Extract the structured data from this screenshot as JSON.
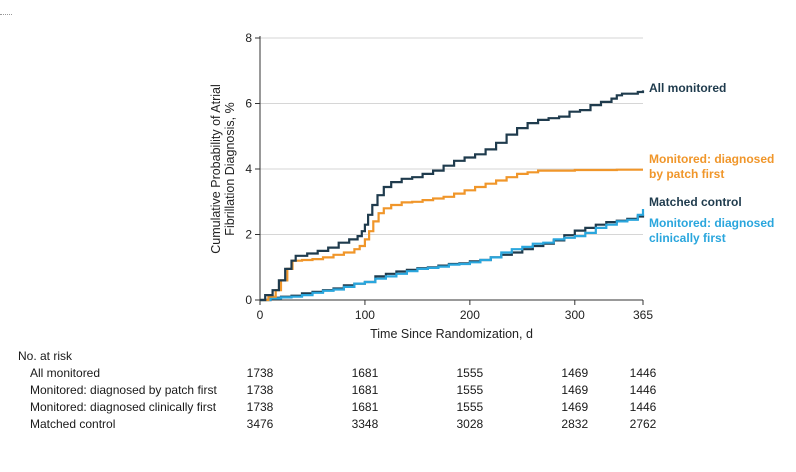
{
  "chart_data": {
    "type": "line",
    "xlabel": "Time Since Randomization, d",
    "ylabel_lines": [
      "Cumulative Probability of Atrial",
      "Fibrillation Diagnosis, %"
    ],
    "xlim": [
      0,
      365
    ],
    "ylim": [
      0,
      8
    ],
    "x_ticks": [
      0,
      100,
      200,
      300,
      365
    ],
    "y_ticks": [
      0,
      2,
      4,
      6,
      8
    ],
    "grid": "horizontal",
    "series": [
      {
        "name": "All monitored",
        "color": "#1f3b4d",
        "points": [
          [
            0,
            0
          ],
          [
            5,
            0.15
          ],
          [
            12,
            0.3
          ],
          [
            18,
            0.6
          ],
          [
            24,
            0.95
          ],
          [
            30,
            1.2
          ],
          [
            34,
            1.35
          ],
          [
            45,
            1.42
          ],
          [
            55,
            1.5
          ],
          [
            65,
            1.6
          ],
          [
            75,
            1.75
          ],
          [
            85,
            1.85
          ],
          [
            93,
            1.95
          ],
          [
            97,
            2.1
          ],
          [
            100,
            2.3
          ],
          [
            103,
            2.6
          ],
          [
            107,
            2.9
          ],
          [
            112,
            3.2
          ],
          [
            118,
            3.45
          ],
          [
            125,
            3.6
          ],
          [
            135,
            3.7
          ],
          [
            145,
            3.75
          ],
          [
            155,
            3.85
          ],
          [
            165,
            3.95
          ],
          [
            175,
            4.1
          ],
          [
            185,
            4.25
          ],
          [
            195,
            4.35
          ],
          [
            205,
            4.45
          ],
          [
            215,
            4.6
          ],
          [
            225,
            4.8
          ],
          [
            235,
            5.05
          ],
          [
            245,
            5.25
          ],
          [
            255,
            5.4
          ],
          [
            265,
            5.5
          ],
          [
            275,
            5.55
          ],
          [
            285,
            5.6
          ],
          [
            295,
            5.75
          ],
          [
            305,
            5.8
          ],
          [
            315,
            5.95
          ],
          [
            325,
            6.05
          ],
          [
            335,
            6.15
          ],
          [
            340,
            6.25
          ],
          [
            345,
            6.3
          ],
          [
            352,
            6.3
          ],
          [
            360,
            6.35
          ],
          [
            365,
            6.4
          ]
        ]
      },
      {
        "name": "Monitored: diagnosed by patch first",
        "color": "#f0962a",
        "points": [
          [
            0,
            0
          ],
          [
            8,
            0.1
          ],
          [
            15,
            0.3
          ],
          [
            20,
            0.6
          ],
          [
            26,
            0.95
          ],
          [
            31,
            1.2
          ],
          [
            40,
            1.22
          ],
          [
            50,
            1.25
          ],
          [
            60,
            1.3
          ],
          [
            70,
            1.38
          ],
          [
            80,
            1.45
          ],
          [
            90,
            1.55
          ],
          [
            95,
            1.65
          ],
          [
            100,
            1.85
          ],
          [
            104,
            2.1
          ],
          [
            108,
            2.4
          ],
          [
            113,
            2.65
          ],
          [
            118,
            2.8
          ],
          [
            125,
            2.9
          ],
          [
            135,
            2.98
          ],
          [
            145,
            3.0
          ],
          [
            155,
            3.05
          ],
          [
            165,
            3.1
          ],
          [
            175,
            3.15
          ],
          [
            185,
            3.25
          ],
          [
            195,
            3.35
          ],
          [
            205,
            3.45
          ],
          [
            215,
            3.55
          ],
          [
            225,
            3.65
          ],
          [
            235,
            3.75
          ],
          [
            245,
            3.85
          ],
          [
            255,
            3.9
          ],
          [
            265,
            3.95
          ],
          [
            280,
            3.95
          ],
          [
            300,
            3.97
          ],
          [
            320,
            3.97
          ],
          [
            340,
            3.98
          ],
          [
            365,
            3.98
          ]
        ]
      },
      {
        "name": "Matched control",
        "color": "#1f3b4d",
        "points": [
          [
            0,
            0
          ],
          [
            10,
            0.07
          ],
          [
            20,
            0.1
          ],
          [
            30,
            0.13
          ],
          [
            40,
            0.2
          ],
          [
            50,
            0.25
          ],
          [
            60,
            0.3
          ],
          [
            70,
            0.35
          ],
          [
            80,
            0.45
          ],
          [
            90,
            0.5
          ],
          [
            100,
            0.55
          ],
          [
            110,
            0.72
          ],
          [
            120,
            0.8
          ],
          [
            130,
            0.87
          ],
          [
            140,
            0.92
          ],
          [
            150,
            0.97
          ],
          [
            160,
            1.0
          ],
          [
            170,
            1.05
          ],
          [
            180,
            1.1
          ],
          [
            190,
            1.12
          ],
          [
            200,
            1.18
          ],
          [
            210,
            1.22
          ],
          [
            220,
            1.3
          ],
          [
            230,
            1.38
          ],
          [
            240,
            1.45
          ],
          [
            250,
            1.55
          ],
          [
            260,
            1.65
          ],
          [
            270,
            1.72
          ],
          [
            280,
            1.82
          ],
          [
            290,
            1.98
          ],
          [
            300,
            2.12
          ],
          [
            310,
            2.2
          ],
          [
            320,
            2.3
          ],
          [
            330,
            2.38
          ],
          [
            340,
            2.42
          ],
          [
            350,
            2.48
          ],
          [
            360,
            2.55
          ],
          [
            365,
            2.6
          ]
        ]
      },
      {
        "name": "Monitored: diagnosed clinically first",
        "color": "#2aa6dd",
        "points": [
          [
            0,
            0
          ],
          [
            10,
            0.05
          ],
          [
            20,
            0.08
          ],
          [
            30,
            0.1
          ],
          [
            40,
            0.15
          ],
          [
            50,
            0.22
          ],
          [
            60,
            0.28
          ],
          [
            70,
            0.32
          ],
          [
            80,
            0.4
          ],
          [
            90,
            0.5
          ],
          [
            100,
            0.55
          ],
          [
            110,
            0.65
          ],
          [
            120,
            0.72
          ],
          [
            130,
            0.8
          ],
          [
            140,
            0.88
          ],
          [
            150,
            0.95
          ],
          [
            160,
            0.98
          ],
          [
            170,
            1.02
          ],
          [
            180,
            1.08
          ],
          [
            190,
            1.1
          ],
          [
            200,
            1.15
          ],
          [
            210,
            1.22
          ],
          [
            220,
            1.3
          ],
          [
            230,
            1.45
          ],
          [
            240,
            1.55
          ],
          [
            250,
            1.62
          ],
          [
            260,
            1.72
          ],
          [
            270,
            1.75
          ],
          [
            280,
            1.85
          ],
          [
            290,
            1.9
          ],
          [
            300,
            1.95
          ],
          [
            310,
            2.05
          ],
          [
            320,
            2.2
          ],
          [
            330,
            2.3
          ],
          [
            340,
            2.4
          ],
          [
            350,
            2.45
          ],
          [
            360,
            2.6
          ],
          [
            365,
            2.78
          ]
        ]
      }
    ]
  },
  "legend_labels": {
    "all_monitored": [
      "All monitored"
    ],
    "patch_first": [
      "Monitored: diagnosed",
      "by patch first"
    ],
    "matched_control": [
      "Matched control"
    ],
    "clinically_first": [
      "Monitored: diagnosed",
      "clinically first"
    ]
  },
  "risk_table": {
    "title": "No. at risk",
    "rows": [
      {
        "label": "All monitored",
        "values": [
          "1738",
          "1681",
          "1555",
          "1469",
          "1446"
        ]
      },
      {
        "label": "Monitored: diagnosed by patch first",
        "values": [
          "1738",
          "1681",
          "1555",
          "1469",
          "1446"
        ]
      },
      {
        "label": "Monitored: diagnosed clinically first",
        "values": [
          "1738",
          "1681",
          "1555",
          "1469",
          "1446"
        ]
      },
      {
        "label": "Matched control",
        "values": [
          "3476",
          "3348",
          "3028",
          "2832",
          "2762"
        ]
      }
    ]
  }
}
